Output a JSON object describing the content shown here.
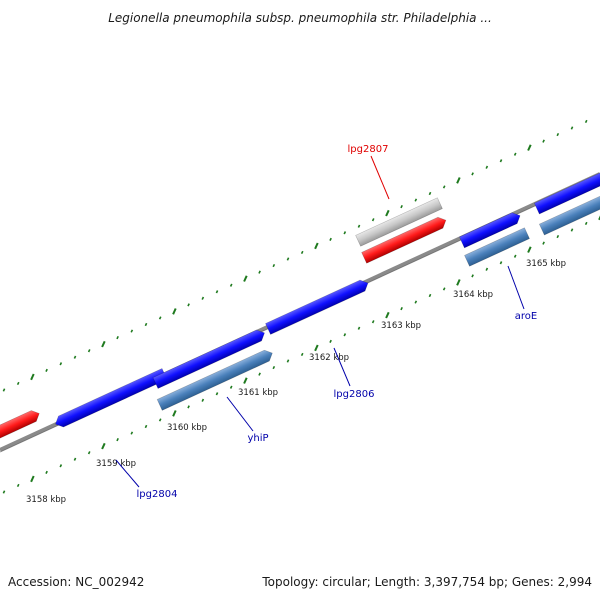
{
  "title": "Legionella pneumophila subsp. pneumophila str. Philadelphia ...",
  "footer": {
    "accession": "Accession: NC_002942",
    "summary": "Topology: circular; Length: 3,397,754 bp; Genes: 2,994"
  },
  "colors": {
    "backbone": "#8a8a8a",
    "tick": "#1f7a1f",
    "gene_forward": "#1010ff",
    "gene_reverse": "#4a80bb",
    "gene_highlight": "#ff1a1a",
    "gene_pseudo": "#c8c8c8",
    "label_default": "#0000aa",
    "label_highlight": "#e00000"
  },
  "ticks": [
    {
      "label": "3158 kbp"
    },
    {
      "label": "3159 kbp"
    },
    {
      "label": "3160 kbp"
    },
    {
      "label": "3161 kbp"
    },
    {
      "label": "3162 kbp"
    },
    {
      "label": "3163 kbp"
    },
    {
      "label": "3164 kbp"
    },
    {
      "label": "3165 kbp"
    }
  ],
  "gene_labels": [
    {
      "text": "lpg2807",
      "highlight": true
    },
    {
      "text": "aroE",
      "highlight": false
    },
    {
      "text": "lpg2806",
      "highlight": false
    },
    {
      "text": "yhiP",
      "highlight": false
    },
    {
      "text": "lpg2804",
      "highlight": false
    }
  ]
}
